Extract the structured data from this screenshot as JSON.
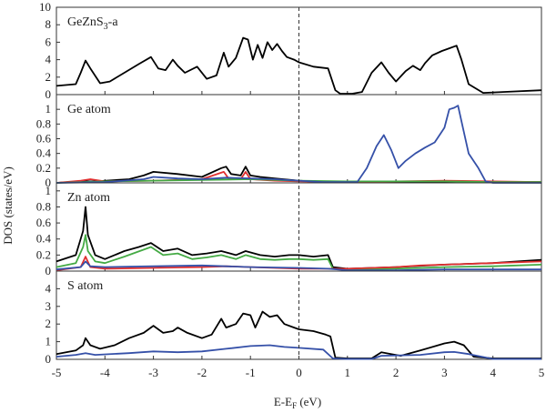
{
  "chart_data": {
    "type": "line",
    "xlabel_main": "E-E",
    "xlabel_sub": "F",
    "xlabel_unit": " (eV)",
    "ylabel": "DOS (states/eV)",
    "xlim": [
      -5,
      5
    ],
    "xticks": [
      "-5",
      "-4",
      "-3",
      "-2",
      "-1",
      "0",
      "1",
      "2",
      "3",
      "4",
      "5"
    ],
    "fermi_line_x": 0,
    "panels": [
      {
        "label_main": "GeZnS",
        "label_sub": "3",
        "label_tail": "-a",
        "ylim": [
          0,
          10
        ],
        "yticks": [
          "0",
          "2",
          "4",
          "6",
          "8",
          "10"
        ],
        "series": [
          {
            "color": "#000000",
            "x": [
              -5,
              -4.6,
              -4.5,
              -4.4,
              -4.3,
              -4.1,
              -3.9,
              -3.6,
              -3.3,
              -3.05,
              -2.9,
              -2.75,
              -2.6,
              -2.5,
              -2.35,
              -2.1,
              -1.9,
              -1.7,
              -1.55,
              -1.45,
              -1.3,
              -1.15,
              -1.05,
              -0.95,
              -0.85,
              -0.75,
              -0.65,
              -0.55,
              -0.45,
              -0.35,
              -0.25,
              -0.1,
              0,
              0.3,
              0.6,
              0.75,
              0.85,
              1.1,
              1.3,
              1.5,
              1.7,
              1.85,
              2.0,
              2.2,
              2.35,
              2.5,
              2.6,
              2.75,
              2.95,
              3.1,
              3.25,
              3.35,
              3.5,
              3.8,
              4.2,
              5
            ],
            "y": [
              1,
              1.2,
              2.5,
              3.9,
              3.0,
              1.3,
              1.5,
              2.5,
              3.5,
              4.3,
              3.0,
              2.8,
              4.0,
              3.3,
              2.5,
              3.2,
              1.8,
              2.2,
              4.8,
              3.2,
              4.2,
              6.5,
              6.3,
              4.0,
              5.7,
              4.2,
              6.0,
              5.1,
              5.8,
              5.0,
              4.3,
              4.0,
              3.7,
              3.2,
              3.0,
              0.5,
              0.1,
              0.1,
              0.3,
              2.5,
              3.7,
              2.5,
              1.5,
              2.7,
              3.3,
              2.8,
              3.6,
              4.5,
              5.0,
              5.3,
              5.6,
              4.0,
              1.2,
              0.2,
              0.3,
              0.5
            ]
          }
        ]
      },
      {
        "label_main": "Ge atom",
        "label_sub": "",
        "label_tail": "",
        "ylim": [
          0,
          1.2
        ],
        "yticks": [
          "0",
          "0.2",
          "0.4",
          "0.6",
          "0.8",
          "1"
        ],
        "series": [
          {
            "color": "#000000",
            "x": [
              -5,
              -4.5,
              -4.2,
              -3.5,
              -3.2,
              -3.0,
              -2.5,
              -2.0,
              -1.6,
              -1.5,
              -1.4,
              -1.2,
              -1.1,
              -1.0,
              -0.8,
              -0.5,
              0,
              0.5,
              1,
              5
            ],
            "y": [
              0,
              0.02,
              0.02,
              0.05,
              0.1,
              0.15,
              0.12,
              0.08,
              0.2,
              0.22,
              0.12,
              0.1,
              0.22,
              0.1,
              0.08,
              0.06,
              0.03,
              0.01,
              0.01,
              0.01
            ]
          },
          {
            "color": "#e03030",
            "x": [
              -5,
              -4.5,
              -4.3,
              -4.0,
              -3.0,
              -2.0,
              -1.55,
              -1.45,
              -1.2,
              -1.1,
              -1.0,
              -0.5,
              0,
              1,
              2,
              3,
              5
            ],
            "y": [
              0,
              0.03,
              0.05,
              0.02,
              0.03,
              0.05,
              0.15,
              0.06,
              0.05,
              0.15,
              0.05,
              0.03,
              0.02,
              0.01,
              0.02,
              0.03,
              0.01
            ]
          },
          {
            "color": "#44aa44",
            "x": [
              -5,
              -4,
              -3,
              -2,
              -1,
              0,
              1,
              2,
              3,
              4,
              5
            ],
            "y": [
              0,
              0.02,
              0.03,
              0.04,
              0.05,
              0.03,
              0.02,
              0.02,
              0.02,
              0.01,
              0.01
            ]
          },
          {
            "color": "#3550a8",
            "x": [
              -5,
              -4,
              -3.2,
              -3.0,
              -2.5,
              -2.0,
              -1.5,
              -1.0,
              -0.5,
              0,
              0.5,
              1.2,
              1.4,
              1.6,
              1.75,
              1.9,
              2.05,
              2.2,
              2.4,
              2.6,
              2.8,
              3.0,
              3.1,
              3.2,
              3.28,
              3.38,
              3.5,
              3.7,
              3.85,
              4,
              5
            ],
            "y": [
              0,
              0.01,
              0.05,
              0.08,
              0.06,
              0.05,
              0.07,
              0.06,
              0.05,
              0.03,
              0.01,
              0.01,
              0.2,
              0.5,
              0.65,
              0.45,
              0.2,
              0.3,
              0.4,
              0.48,
              0.55,
              0.75,
              1.0,
              1.02,
              1.05,
              0.75,
              0.4,
              0.2,
              0.02,
              0,
              0
            ]
          }
        ]
      },
      {
        "label_main": "Zn atom",
        "label_sub": "",
        "label_tail": "",
        "ylim": [
          0,
          1.1
        ],
        "yticks": [
          "0",
          "0.2",
          "0.4",
          "0.6",
          "0.8",
          "1"
        ],
        "series": [
          {
            "color": "#000000",
            "x": [
              -5,
              -4.6,
              -4.45,
              -4.4,
              -4.35,
              -4.2,
              -4.0,
              -3.6,
              -3.3,
              -3.05,
              -2.8,
              -2.5,
              -2.2,
              -1.9,
              -1.6,
              -1.3,
              -1.1,
              -0.8,
              -0.5,
              -0.2,
              0,
              0.3,
              0.6,
              0.7,
              1.0,
              2,
              3,
              4,
              5
            ],
            "y": [
              0.12,
              0.2,
              0.5,
              0.8,
              0.45,
              0.2,
              0.15,
              0.25,
              0.3,
              0.35,
              0.25,
              0.28,
              0.2,
              0.22,
              0.25,
              0.2,
              0.25,
              0.2,
              0.18,
              0.2,
              0.2,
              0.18,
              0.2,
              0.05,
              0.03,
              0.05,
              0.08,
              0.1,
              0.14
            ]
          },
          {
            "color": "#44aa44",
            "x": [
              -5,
              -4.6,
              -4.45,
              -4.4,
              -4.35,
              -4.2,
              -4.0,
              -3.6,
              -3.05,
              -2.8,
              -2.5,
              -2.2,
              -1.9,
              -1.6,
              -1.3,
              -1.1,
              -0.8,
              -0.5,
              -0.2,
              0,
              0.3,
              0.6,
              0.7,
              1.0,
              2,
              3,
              4,
              5
            ],
            "y": [
              0.05,
              0.1,
              0.3,
              0.45,
              0.25,
              0.12,
              0.1,
              0.18,
              0.3,
              0.2,
              0.22,
              0.15,
              0.17,
              0.2,
              0.15,
              0.2,
              0.15,
              0.14,
              0.15,
              0.15,
              0.14,
              0.15,
              0.03,
              0.02,
              0.03,
              0.05,
              0.06,
              0.08
            ]
          },
          {
            "color": "#e03030",
            "x": [
              -5,
              -4.5,
              -4.4,
              -4.3,
              -4.0,
              -3.0,
              -2.0,
              -1.5,
              -1.0,
              0,
              1,
              2,
              2.5,
              3,
              4,
              5
            ],
            "y": [
              0.01,
              0.05,
              0.18,
              0.05,
              0.03,
              0.04,
              0.05,
              0.06,
              0.05,
              0.03,
              0.03,
              0.05,
              0.07,
              0.08,
              0.1,
              0.12
            ]
          },
          {
            "color": "#3550a8",
            "x": [
              -5,
              -4.5,
              -4.4,
              -4.3,
              -4.0,
              -3.0,
              -2.0,
              -1.0,
              0,
              0.6,
              1,
              2,
              3,
              4,
              5
            ],
            "y": [
              0.02,
              0.05,
              0.12,
              0.06,
              0.05,
              0.06,
              0.07,
              0.05,
              0.04,
              0.03,
              0.01,
              0.01,
              0.02,
              0.02,
              0.02
            ]
          }
        ]
      },
      {
        "label_main": "S atom",
        "label_sub": "",
        "label_tail": "",
        "ylim": [
          0,
          5
        ],
        "yticks": [
          "0",
          "1",
          "2",
          "3",
          "4"
        ],
        "series": [
          {
            "color": "#000000",
            "x": [
              -5,
              -4.6,
              -4.45,
              -4.4,
              -4.3,
              -4.1,
              -3.8,
              -3.5,
              -3.2,
              -3.0,
              -2.8,
              -2.6,
              -2.5,
              -2.3,
              -2.0,
              -1.8,
              -1.6,
              -1.5,
              -1.3,
              -1.15,
              -1.0,
              -0.9,
              -0.75,
              -0.6,
              -0.45,
              -0.3,
              -0.1,
              0,
              0.3,
              0.55,
              0.65,
              0.75,
              1.0,
              1.5,
              1.7,
              1.9,
              2.1,
              2.5,
              3.0,
              3.2,
              3.4,
              3.6,
              4,
              5
            ],
            "y": [
              0.3,
              0.5,
              0.8,
              1.2,
              0.8,
              0.6,
              0.8,
              1.2,
              1.5,
              1.9,
              1.5,
              1.6,
              1.8,
              1.5,
              1.2,
              1.4,
              2.3,
              1.8,
              2.0,
              2.6,
              2.5,
              1.8,
              2.7,
              2.4,
              2.5,
              2.0,
              1.8,
              1.7,
              1.6,
              1.4,
              1.3,
              0.1,
              0.05,
              0.05,
              0.4,
              0.3,
              0.2,
              0.5,
              0.9,
              1.0,
              0.8,
              0.15,
              0.05,
              0.05
            ]
          },
          {
            "color": "#3550a8",
            "x": [
              -5,
              -4.6,
              -4.4,
              -4.2,
              -3.5,
              -3.0,
              -2.5,
              -2.0,
              -1.5,
              -1.0,
              -0.6,
              -0.3,
              0,
              0.5,
              0.7,
              1.0,
              1.5,
              1.7,
              2.5,
              3.0,
              3.2,
              3.5,
              4,
              5
            ],
            "y": [
              0.15,
              0.25,
              0.35,
              0.25,
              0.35,
              0.45,
              0.4,
              0.45,
              0.6,
              0.75,
              0.8,
              0.7,
              0.65,
              0.55,
              0.05,
              0.02,
              0.02,
              0.2,
              0.25,
              0.4,
              0.42,
              0.3,
              0.02,
              0.02
            ]
          }
        ]
      }
    ]
  }
}
